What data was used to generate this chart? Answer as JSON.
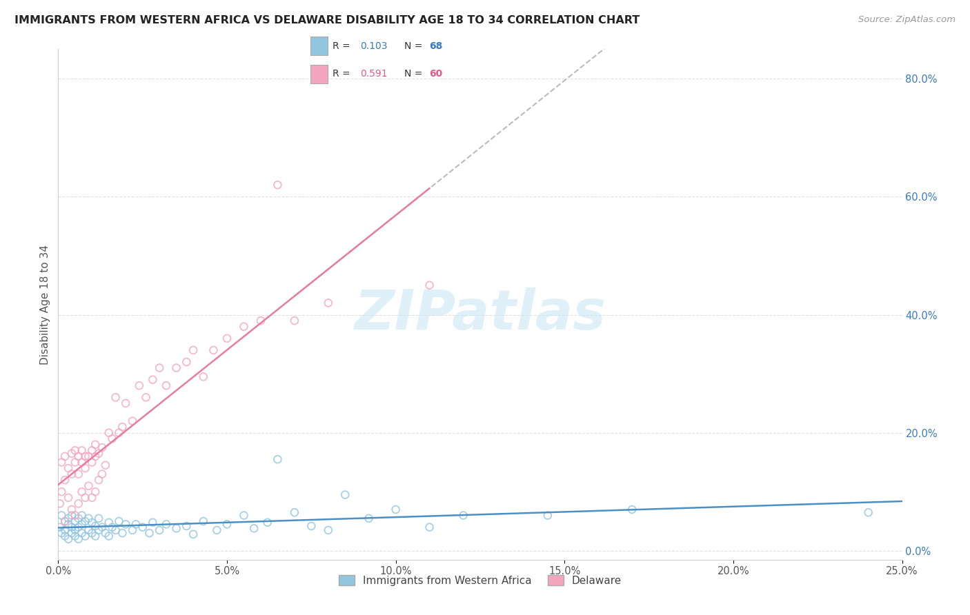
{
  "title": "IMMIGRANTS FROM WESTERN AFRICA VS DELAWARE DISABILITY AGE 18 TO 34 CORRELATION CHART",
  "source": "Source: ZipAtlas.com",
  "ylabel": "Disability Age 18 to 34",
  "legend_label1": "Immigrants from Western Africa",
  "legend_label2": "Delaware",
  "R1": "0.103",
  "N1": "68",
  "R2": "0.591",
  "N2": "60",
  "color_blue": "#92c5de",
  "color_pink": "#f4a6be",
  "color_blue_text": "#3a7abf",
  "color_pink_text": "#e05a8a",
  "color_pink_line": "#e87ca0",
  "color_blue_line": "#4a90c4",
  "watermark": "ZIPatlas",
  "blue_scatter_x": [
    0.0005,
    0.001,
    0.001,
    0.002,
    0.002,
    0.002,
    0.003,
    0.003,
    0.003,
    0.004,
    0.004,
    0.004,
    0.005,
    0.005,
    0.005,
    0.006,
    0.006,
    0.006,
    0.007,
    0.007,
    0.007,
    0.008,
    0.008,
    0.009,
    0.009,
    0.01,
    0.01,
    0.011,
    0.011,
    0.012,
    0.012,
    0.013,
    0.014,
    0.015,
    0.015,
    0.016,
    0.017,
    0.018,
    0.019,
    0.02,
    0.022,
    0.023,
    0.025,
    0.027,
    0.028,
    0.03,
    0.032,
    0.035,
    0.038,
    0.04,
    0.043,
    0.047,
    0.05,
    0.055,
    0.058,
    0.062,
    0.065,
    0.07,
    0.075,
    0.08,
    0.085,
    0.092,
    0.1,
    0.11,
    0.12,
    0.145,
    0.17,
    0.24
  ],
  "blue_scatter_y": [
    0.04,
    0.03,
    0.06,
    0.025,
    0.035,
    0.05,
    0.02,
    0.045,
    0.055,
    0.03,
    0.04,
    0.06,
    0.025,
    0.035,
    0.05,
    0.02,
    0.04,
    0.055,
    0.03,
    0.045,
    0.06,
    0.025,
    0.05,
    0.035,
    0.055,
    0.03,
    0.048,
    0.025,
    0.042,
    0.035,
    0.055,
    0.04,
    0.03,
    0.048,
    0.025,
    0.04,
    0.035,
    0.05,
    0.03,
    0.045,
    0.035,
    0.045,
    0.04,
    0.03,
    0.048,
    0.035,
    0.045,
    0.038,
    0.042,
    0.028,
    0.05,
    0.035,
    0.045,
    0.06,
    0.038,
    0.048,
    0.155,
    0.065,
    0.042,
    0.035,
    0.095,
    0.055,
    0.07,
    0.04,
    0.06,
    0.06,
    0.07,
    0.065
  ],
  "pink_scatter_x": [
    0.0005,
    0.001,
    0.001,
    0.002,
    0.002,
    0.002,
    0.003,
    0.003,
    0.004,
    0.004,
    0.004,
    0.005,
    0.005,
    0.005,
    0.006,
    0.006,
    0.006,
    0.007,
    0.007,
    0.007,
    0.008,
    0.008,
    0.008,
    0.009,
    0.009,
    0.01,
    0.01,
    0.01,
    0.011,
    0.011,
    0.011,
    0.012,
    0.012,
    0.013,
    0.013,
    0.014,
    0.015,
    0.016,
    0.017,
    0.018,
    0.019,
    0.02,
    0.022,
    0.024,
    0.026,
    0.028,
    0.03,
    0.032,
    0.035,
    0.038,
    0.04,
    0.043,
    0.046,
    0.05,
    0.055,
    0.06,
    0.065,
    0.07,
    0.08,
    0.11
  ],
  "pink_scatter_y": [
    0.08,
    0.1,
    0.15,
    0.05,
    0.12,
    0.16,
    0.09,
    0.14,
    0.07,
    0.13,
    0.165,
    0.06,
    0.15,
    0.17,
    0.08,
    0.13,
    0.16,
    0.1,
    0.15,
    0.17,
    0.09,
    0.14,
    0.16,
    0.11,
    0.16,
    0.09,
    0.15,
    0.17,
    0.1,
    0.16,
    0.18,
    0.12,
    0.165,
    0.13,
    0.175,
    0.145,
    0.2,
    0.19,
    0.26,
    0.2,
    0.21,
    0.25,
    0.22,
    0.28,
    0.26,
    0.29,
    0.31,
    0.28,
    0.31,
    0.32,
    0.34,
    0.295,
    0.34,
    0.36,
    0.38,
    0.39,
    0.62,
    0.39,
    0.42,
    0.45
  ],
  "xlim": [
    0.0,
    0.25
  ],
  "ylim": [
    -0.015,
    0.85
  ],
  "right_ytick_vals": [
    0.0,
    0.2,
    0.4,
    0.6,
    0.8
  ],
  "xtick_vals": [
    0.0,
    0.05,
    0.1,
    0.15,
    0.2,
    0.25
  ],
  "xtick_labels": [
    "0.0%",
    "5.0%",
    "10.0%",
    "15.0%",
    "20.0%",
    "25.0%"
  ]
}
